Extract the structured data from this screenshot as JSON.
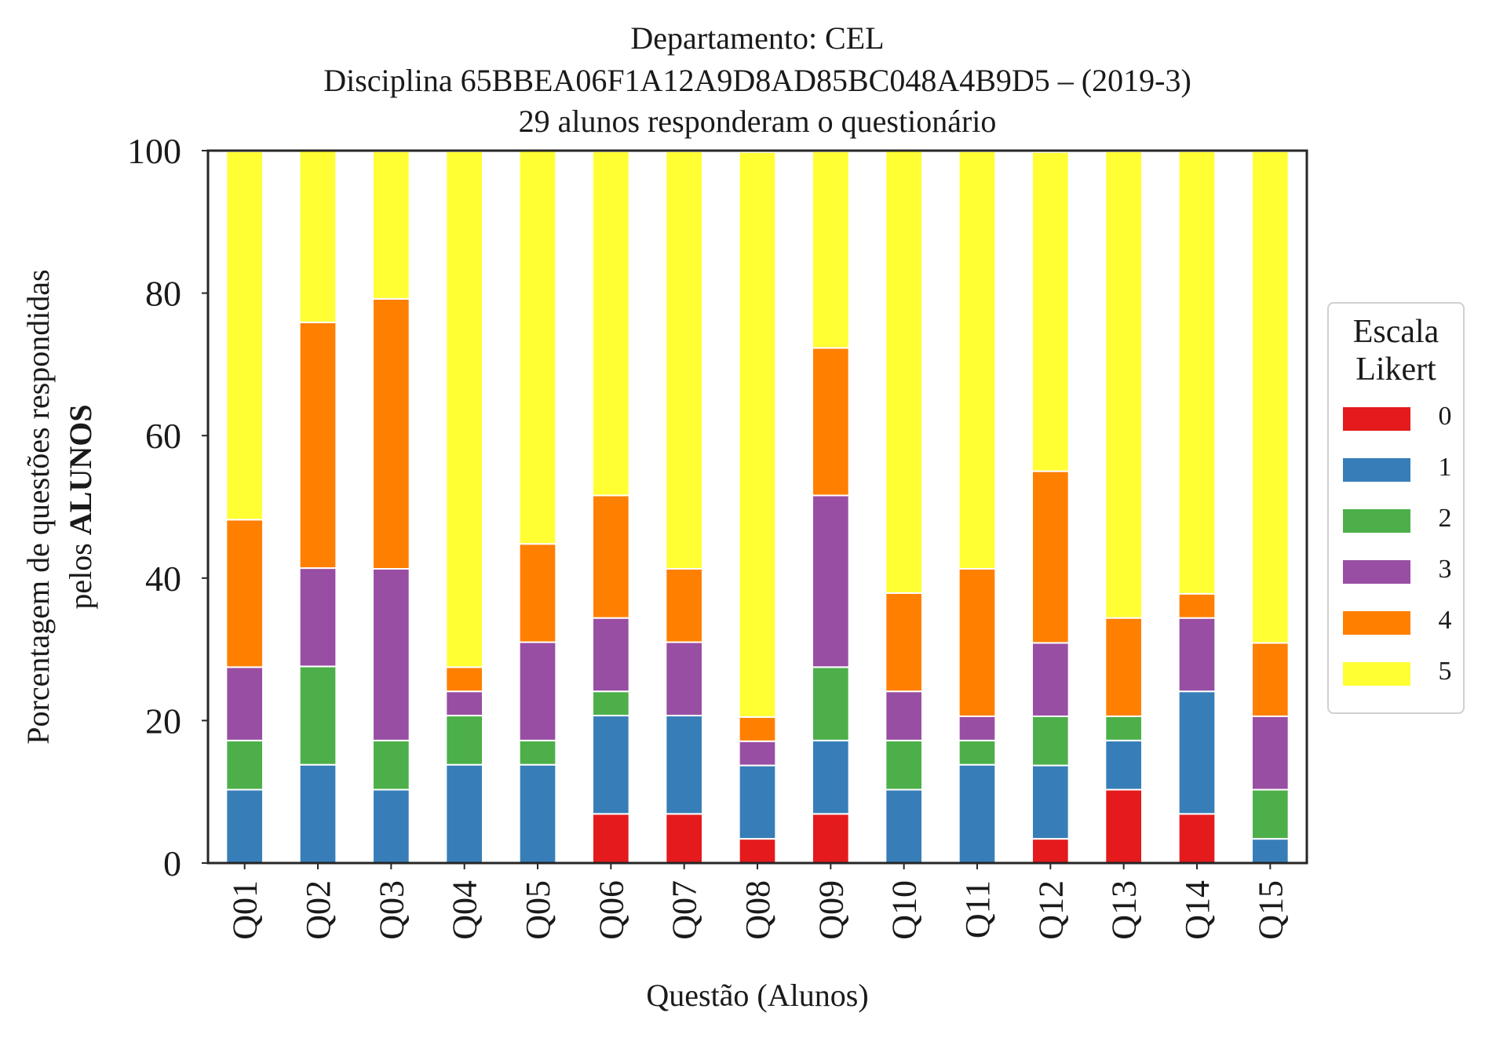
{
  "chart_data": {
    "type": "bar",
    "stacked": true,
    "title": [
      "Departamento: CEL",
      "Disciplina 65BBEA06F1A12A9D8AD85BC048A4B9D5 – (2019-3)",
      "29 alunos responderam o questionário"
    ],
    "xlabel": "Questão (Alunos)",
    "ylabel_line1": "Porcentagem de questões respondidas",
    "ylabel_line2_prefix": "pelos ",
    "ylabel_line2_bold": "ALUNOS",
    "ylim": [
      0,
      100
    ],
    "yticks": [
      "0",
      "20",
      "40",
      "60",
      "80",
      "100"
    ],
    "ytick_values": [
      0,
      20,
      40,
      60,
      80,
      100
    ],
    "categories": [
      "Q01",
      "Q02",
      "Q03",
      "Q04",
      "Q05",
      "Q06",
      "Q07",
      "Q08",
      "Q09",
      "Q10",
      "Q11",
      "Q12",
      "Q13",
      "Q14",
      "Q15"
    ],
    "legend_title": [
      "Escala",
      "Likert"
    ],
    "legend_position": "right",
    "grid": false,
    "series": [
      {
        "name": "0",
        "color": "#e41a1c",
        "values": [
          0,
          0,
          0,
          0,
          0,
          6.9,
          6.9,
          3.4,
          6.9,
          0,
          0,
          3.4,
          10.3,
          6.9,
          0
        ]
      },
      {
        "name": "1",
        "color": "#377eb8",
        "values": [
          10.3,
          13.8,
          10.3,
          13.8,
          13.8,
          13.8,
          13.8,
          10.3,
          10.3,
          10.3,
          13.8,
          10.3,
          6.9,
          17.2,
          3.4
        ]
      },
      {
        "name": "2",
        "color": "#4daf4a",
        "values": [
          6.9,
          13.8,
          6.9,
          6.9,
          3.4,
          3.4,
          0,
          0,
          10.3,
          6.9,
          3.4,
          6.9,
          3.4,
          0,
          6.9
        ]
      },
      {
        "name": "3",
        "color": "#984ea3",
        "values": [
          10.3,
          13.8,
          24.1,
          3.4,
          13.8,
          10.3,
          10.3,
          3.4,
          24.1,
          6.9,
          3.4,
          10.3,
          0,
          10.3,
          10.3
        ]
      },
      {
        "name": "4",
        "color": "#ff7f00",
        "values": [
          20.7,
          34.5,
          37.9,
          3.4,
          13.8,
          17.2,
          10.3,
          3.4,
          20.7,
          13.8,
          20.7,
          24.1,
          13.8,
          3.4,
          10.3
        ]
      },
      {
        "name": "5",
        "color": "#ffff33",
        "values": [
          51.7,
          24.1,
          20.7,
          72.4,
          55.2,
          48.3,
          58.6,
          79.3,
          27.6,
          62.1,
          58.6,
          44.8,
          65.5,
          62.1,
          69.0
        ]
      }
    ]
  }
}
